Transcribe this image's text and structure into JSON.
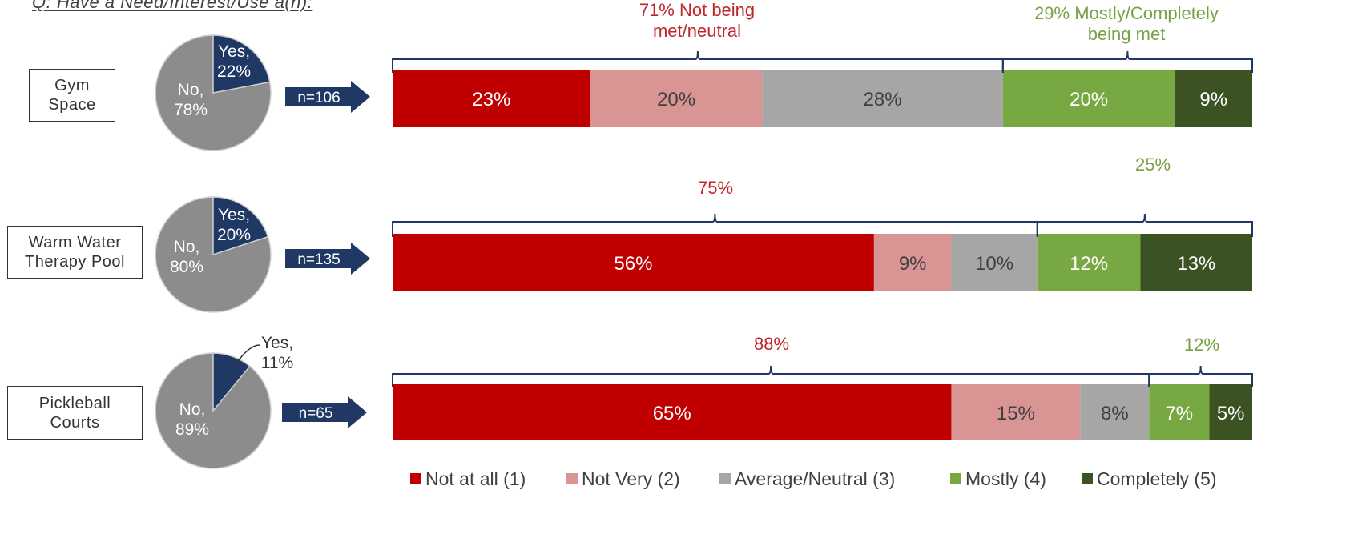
{
  "question": "Q: Have a Need/Interest/Use a(n):",
  "colors": {
    "c1": "#c00000",
    "c2": "#d99594",
    "c3": "#a6a6a6",
    "c4": "#78a842",
    "c5": "#3b5323",
    "pie_no": "#8c8c8c",
    "pie_yes": "#1f3864",
    "arrow": "#1f3864",
    "red_text": "#c0272d",
    "green_text": "#77a143",
    "bracket": "#1f3864"
  },
  "chart_data": [
    {
      "type": "pie",
      "item": "Gym Space",
      "n": "n=106",
      "slices": [
        {
          "name": "Yes",
          "value": 22,
          "label": "Yes,\n22%"
        },
        {
          "name": "No",
          "value": 78,
          "label": "No,\n78%"
        }
      ]
    },
    {
      "type": "pie",
      "item": "Warm Water\nTherapy Pool",
      "n": "n=135",
      "slices": [
        {
          "name": "Yes",
          "value": 20,
          "label": "Yes,\n20%"
        },
        {
          "name": "No",
          "value": 80,
          "label": "No,\n80%"
        }
      ]
    },
    {
      "type": "pie",
      "item": "Pickleball\nCourts",
      "n": "n=65",
      "slices": [
        {
          "name": "Yes",
          "value": 11,
          "label": "Yes,\n11%"
        },
        {
          "name": "No",
          "value": 89,
          "label": "No,\n89%"
        }
      ]
    },
    {
      "type": "bar",
      "orientation": "horizontal",
      "stacked": true,
      "categories": [
        "Gym Space",
        "Warm Water Therapy Pool",
        "Pickleball Courts"
      ],
      "series": [
        {
          "name": "Not at all (1)",
          "values": [
            23,
            56,
            65
          ],
          "labels": [
            "23%",
            "56%",
            "65%"
          ]
        },
        {
          "name": "Not Very (2)",
          "values": [
            20,
            9,
            15
          ],
          "labels": [
            "20%",
            "9%",
            "15%"
          ]
        },
        {
          "name": "Average/Neutral (3)",
          "values": [
            28,
            10,
            8
          ],
          "labels": [
            "28%",
            "10%",
            "8%"
          ]
        },
        {
          "name": "Mostly (4)",
          "values": [
            20,
            12,
            7
          ],
          "labels": [
            "20%",
            "12%",
            "7%"
          ]
        },
        {
          "name": "Completely (5)",
          "values": [
            9,
            13,
            5
          ],
          "labels": [
            "9%",
            "13%",
            "5%"
          ]
        }
      ],
      "annotations": [
        {
          "row": 0,
          "group": "not_met",
          "value": 71,
          "text": "71% Not being\nmet/neutral"
        },
        {
          "row": 0,
          "group": "met",
          "value": 29,
          "text": "29% Mostly/Completely\nbeing met"
        },
        {
          "row": 1,
          "group": "not_met",
          "value": 75,
          "text": "75%"
        },
        {
          "row": 1,
          "group": "met",
          "value": 25,
          "text": "25%"
        },
        {
          "row": 2,
          "group": "not_met",
          "value": 88,
          "text": "88%"
        },
        {
          "row": 2,
          "group": "met",
          "value": 12,
          "text": "12%"
        }
      ],
      "legend_position": "bottom-right",
      "xlim": [
        0,
        100
      ]
    }
  ]
}
